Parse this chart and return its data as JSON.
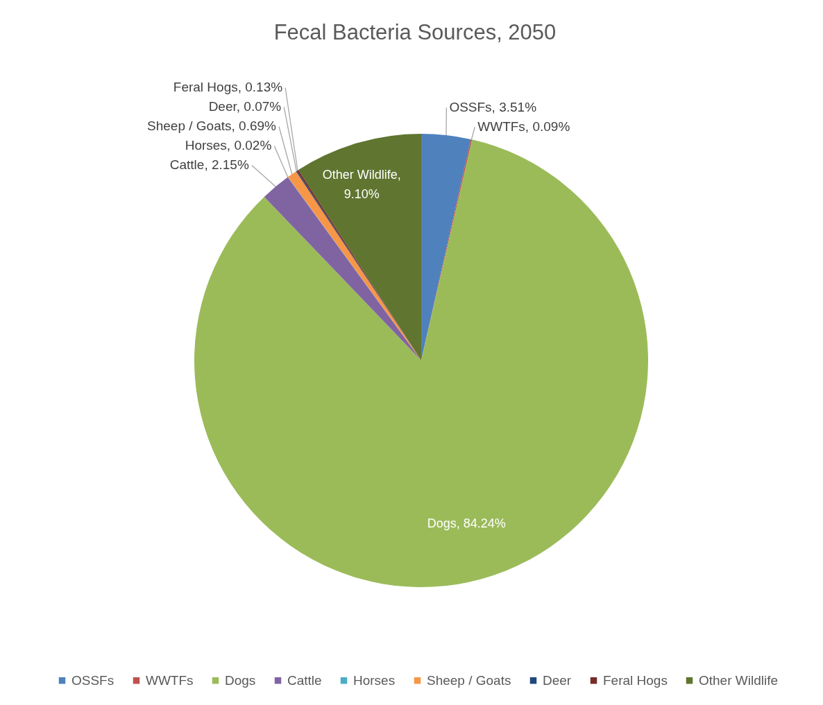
{
  "chart_data": {
    "type": "pie",
    "title": "Fecal Bacteria Sources, 2050",
    "categories": [
      "OSSFs",
      "WWTFs",
      "Dogs",
      "Cattle",
      "Horses",
      "Sheep / Goats",
      "Deer",
      "Feral Hogs",
      "Other Wildlife"
    ],
    "values": [
      3.51,
      0.09,
      84.24,
      2.15,
      0.02,
      0.69,
      0.07,
      0.13,
      9.1
    ],
    "colors": [
      "#4f81bd",
      "#c0504d",
      "#9bbb59",
      "#8064a2",
      "#4bacc6",
      "#f79646",
      "#1f497d",
      "#772c2a",
      "#5f7530"
    ],
    "value_labels": [
      "OSSFs, 3.51%",
      "WWTFs, 0.09%",
      "Dogs, 84.24%",
      "Cattle, 2.15%",
      "Horses, 0.02%",
      "Sheep / Goats, 0.69%",
      "Deer, 0.07%",
      "Feral Hogs, 0.13%",
      "Other Wildlife, 9.10%"
    ],
    "legend": "bottom"
  }
}
